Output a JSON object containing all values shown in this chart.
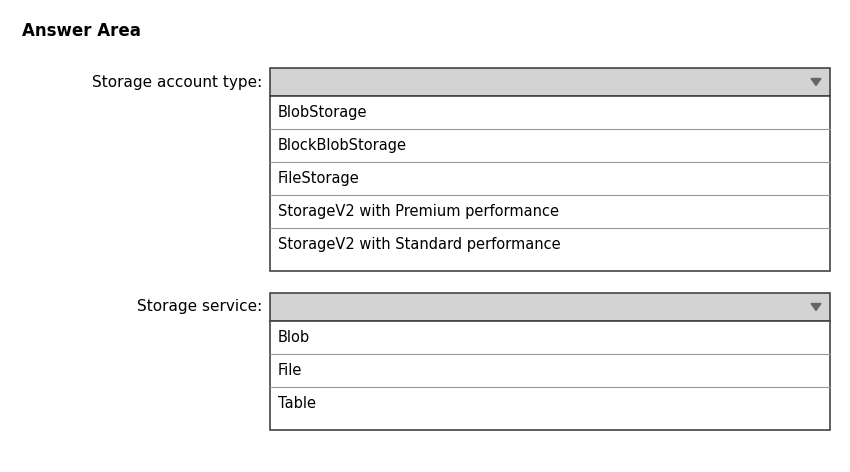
{
  "title": "Answer Area",
  "title_fontsize": 12,
  "title_fontweight": "bold",
  "background_color": "#ffffff",
  "dropdown_bg": "#d3d3d3",
  "dropdown_border": "#444444",
  "item_border": "#999999",
  "list_border": "#444444",
  "text_color": "#000000",
  "arrow_color": "#666666",
  "label1": "Storage account type:",
  "label2": "Storage service:",
  "label_fontsize": 11,
  "items1": [
    "BlobStorage",
    "BlockBlobStorage",
    "FileStorage",
    "StorageV2 with Premium performance",
    "StorageV2 with Standard performance"
  ],
  "items2": [
    "Blob",
    "File",
    "Table"
  ],
  "item_fontsize": 10.5,
  "fig_width": 8.5,
  "fig_height": 4.72,
  "dpi": 100
}
